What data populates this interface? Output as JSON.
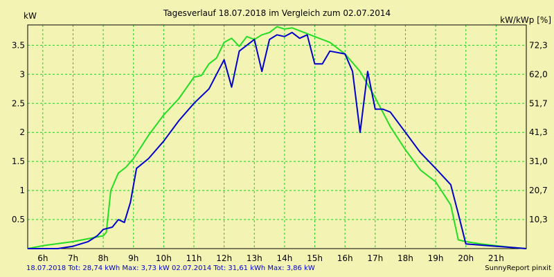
{
  "chart_data": {
    "type": "line",
    "title": "Tagesverlauf 18.07.2018 im Vergleich zum 02.07.2014",
    "ylabel_left": "kW",
    "ylabel_right": "kW/kWp [%]",
    "xlim": [
      5.5,
      22
    ],
    "ylim": [
      0,
      3.85
    ],
    "x_ticks": [
      6,
      7,
      8,
      9,
      10,
      11,
      12,
      13,
      14,
      15,
      16,
      17,
      18,
      19,
      20,
      21
    ],
    "x_tick_labels": [
      "6h",
      "7h",
      "8h",
      "9h",
      "10h",
      "11h",
      "12h",
      "13h",
      "14h",
      "15h",
      "16h",
      "17h",
      "18h",
      "19h",
      "20h",
      "21h"
    ],
    "y_ticks": [
      0.5,
      1,
      1.5,
      2,
      2.5,
      3,
      3.5
    ],
    "y_tick_labels": [
      "0.5",
      "1",
      "1.5",
      "2",
      "2.5",
      "3",
      "3.5"
    ],
    "y_right_tick_labels": [
      "10,3",
      "20,7",
      "31,0",
      "41,3",
      "51,7",
      "62,0",
      "72,3"
    ],
    "grid": true,
    "series": [
      {
        "name": "18.07.2018",
        "color": "#0000cc",
        "points": [
          [
            5.5,
            0
          ],
          [
            6.5,
            0
          ],
          [
            7,
            0.04
          ],
          [
            7.5,
            0.12
          ],
          [
            7.8,
            0.22
          ],
          [
            8,
            0.33
          ],
          [
            8.3,
            0.37
          ],
          [
            8.5,
            0.5
          ],
          [
            8.7,
            0.45
          ],
          [
            8.9,
            0.8
          ],
          [
            9.1,
            1.38
          ],
          [
            9.5,
            1.55
          ],
          [
            10,
            1.85
          ],
          [
            10.5,
            2.2
          ],
          [
            11,
            2.5
          ],
          [
            11.5,
            2.75
          ],
          [
            12,
            3.25
          ],
          [
            12.25,
            2.78
          ],
          [
            12.5,
            3.4
          ],
          [
            13,
            3.6
          ],
          [
            13.25,
            3.05
          ],
          [
            13.5,
            3.6
          ],
          [
            13.75,
            3.68
          ],
          [
            14,
            3.65
          ],
          [
            14.25,
            3.72
          ],
          [
            14.5,
            3.62
          ],
          [
            14.75,
            3.68
          ],
          [
            15,
            3.18
          ],
          [
            15.25,
            3.18
          ],
          [
            15.5,
            3.4
          ],
          [
            16,
            3.35
          ],
          [
            16.25,
            3.05
          ],
          [
            16.5,
            2.0
          ],
          [
            16.75,
            3.05
          ],
          [
            17,
            2.4
          ],
          [
            17.25,
            2.4
          ],
          [
            17.5,
            2.35
          ],
          [
            18,
            2.0
          ],
          [
            18.5,
            1.65
          ],
          [
            19,
            1.38
          ],
          [
            19.5,
            1.1
          ],
          [
            19.75,
            0.6
          ],
          [
            20,
            0.08
          ],
          [
            21,
            0.04
          ],
          [
            21.5,
            0.02
          ],
          [
            22,
            0
          ]
        ]
      },
      {
        "name": "02.07.2014",
        "color": "#22dd22",
        "points": [
          [
            5.5,
            0
          ],
          [
            6,
            0.05
          ],
          [
            7,
            0.12
          ],
          [
            8,
            0.22
          ],
          [
            8.1,
            0.28
          ],
          [
            8.25,
            1.0
          ],
          [
            8.5,
            1.3
          ],
          [
            8.75,
            1.4
          ],
          [
            9,
            1.55
          ],
          [
            9.5,
            1.95
          ],
          [
            10,
            2.3
          ],
          [
            10.5,
            2.58
          ],
          [
            11,
            2.95
          ],
          [
            11.25,
            2.98
          ],
          [
            11.5,
            3.18
          ],
          [
            11.75,
            3.28
          ],
          [
            12,
            3.55
          ],
          [
            12.25,
            3.62
          ],
          [
            12.5,
            3.48
          ],
          [
            12.75,
            3.65
          ],
          [
            13,
            3.6
          ],
          [
            13.25,
            3.68
          ],
          [
            13.5,
            3.72
          ],
          [
            13.75,
            3.82
          ],
          [
            14,
            3.78
          ],
          [
            14.25,
            3.8
          ],
          [
            14.5,
            3.75
          ],
          [
            15,
            3.65
          ],
          [
            15.5,
            3.55
          ],
          [
            16,
            3.35
          ],
          [
            16.5,
            3.05
          ],
          [
            17,
            2.6
          ],
          [
            17.5,
            2.1
          ],
          [
            18,
            1.7
          ],
          [
            18.5,
            1.35
          ],
          [
            19,
            1.15
          ],
          [
            19.5,
            0.75
          ],
          [
            19.75,
            0.15
          ],
          [
            20,
            0.12
          ],
          [
            20.5,
            0.08
          ],
          [
            21,
            0.05
          ],
          [
            21.5,
            0.02
          ],
          [
            22,
            0
          ]
        ]
      }
    ]
  },
  "footer": {
    "series_1_summary": "18.07.2018 Tot: 28,74 kWh Max: 3,73 kW",
    "series_2_summary": "02.07.2014 Tot: 31,61 kWh Max: 3,86 kW",
    "brand": "SunnyReport pinxit"
  }
}
